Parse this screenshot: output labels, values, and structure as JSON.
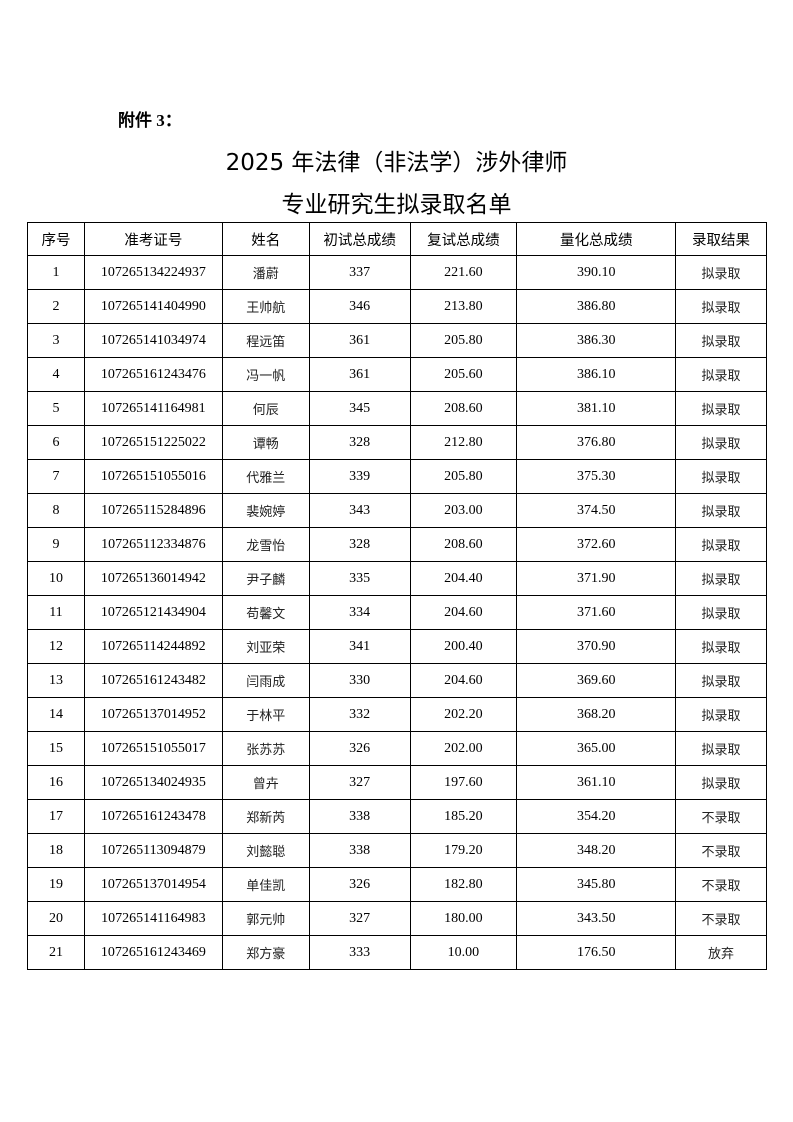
{
  "attachment_label": "附件 3：",
  "title_line1": "2025 年法律（非法学）涉外律师",
  "title_line2": "专业研究生拟录取名单",
  "table": {
    "headers": [
      "序号",
      "准考证号",
      "姓名",
      "初试总成绩",
      "复试总成绩",
      "量化总成绩",
      "录取结果"
    ],
    "rows": [
      [
        "1",
        "107265134224937",
        "潘蔚",
        "337",
        "221.60",
        "390.10",
        "拟录取"
      ],
      [
        "2",
        "107265141404990",
        "王帅航",
        "346",
        "213.80",
        "386.80",
        "拟录取"
      ],
      [
        "3",
        "107265141034974",
        "程远笛",
        "361",
        "205.80",
        "386.30",
        "拟录取"
      ],
      [
        "4",
        "107265161243476",
        "冯一帆",
        "361",
        "205.60",
        "386.10",
        "拟录取"
      ],
      [
        "5",
        "107265141164981",
        "何辰",
        "345",
        "208.60",
        "381.10",
        "拟录取"
      ],
      [
        "6",
        "107265151225022",
        "谭畅",
        "328",
        "212.80",
        "376.80",
        "拟录取"
      ],
      [
        "7",
        "107265151055016",
        "代雅兰",
        "339",
        "205.80",
        "375.30",
        "拟录取"
      ],
      [
        "8",
        "107265115284896",
        "裴婉婷",
        "343",
        "203.00",
        "374.50",
        "拟录取"
      ],
      [
        "9",
        "107265112334876",
        "龙雪怡",
        "328",
        "208.60",
        "372.60",
        "拟录取"
      ],
      [
        "10",
        "107265136014942",
        "尹子麟",
        "335",
        "204.40",
        "371.90",
        "拟录取"
      ],
      [
        "11",
        "107265121434904",
        "苟馨文",
        "334",
        "204.60",
        "371.60",
        "拟录取"
      ],
      [
        "12",
        "107265114244892",
        "刘亚荣",
        "341",
        "200.40",
        "370.90",
        "拟录取"
      ],
      [
        "13",
        "107265161243482",
        "闫雨成",
        "330",
        "204.60",
        "369.60",
        "拟录取"
      ],
      [
        "14",
        "107265137014952",
        "于林平",
        "332",
        "202.20",
        "368.20",
        "拟录取"
      ],
      [
        "15",
        "107265151055017",
        "张苏苏",
        "326",
        "202.00",
        "365.00",
        "拟录取"
      ],
      [
        "16",
        "107265134024935",
        "曾卉",
        "327",
        "197.60",
        "361.10",
        "拟录取"
      ],
      [
        "17",
        "107265161243478",
        "郑新芮",
        "338",
        "185.20",
        "354.20",
        "不录取"
      ],
      [
        "18",
        "107265113094879",
        "刘懿聪",
        "338",
        "179.20",
        "348.20",
        "不录取"
      ],
      [
        "19",
        "107265137014954",
        "单佳凯",
        "326",
        "182.80",
        "345.80",
        "不录取"
      ],
      [
        "20",
        "107265141164983",
        "郭元帅",
        "327",
        "180.00",
        "343.50",
        "不录取"
      ],
      [
        "21",
        "107265161243469",
        "郑方豪",
        "333",
        "10.00",
        "176.50",
        "放弃"
      ]
    ]
  }
}
